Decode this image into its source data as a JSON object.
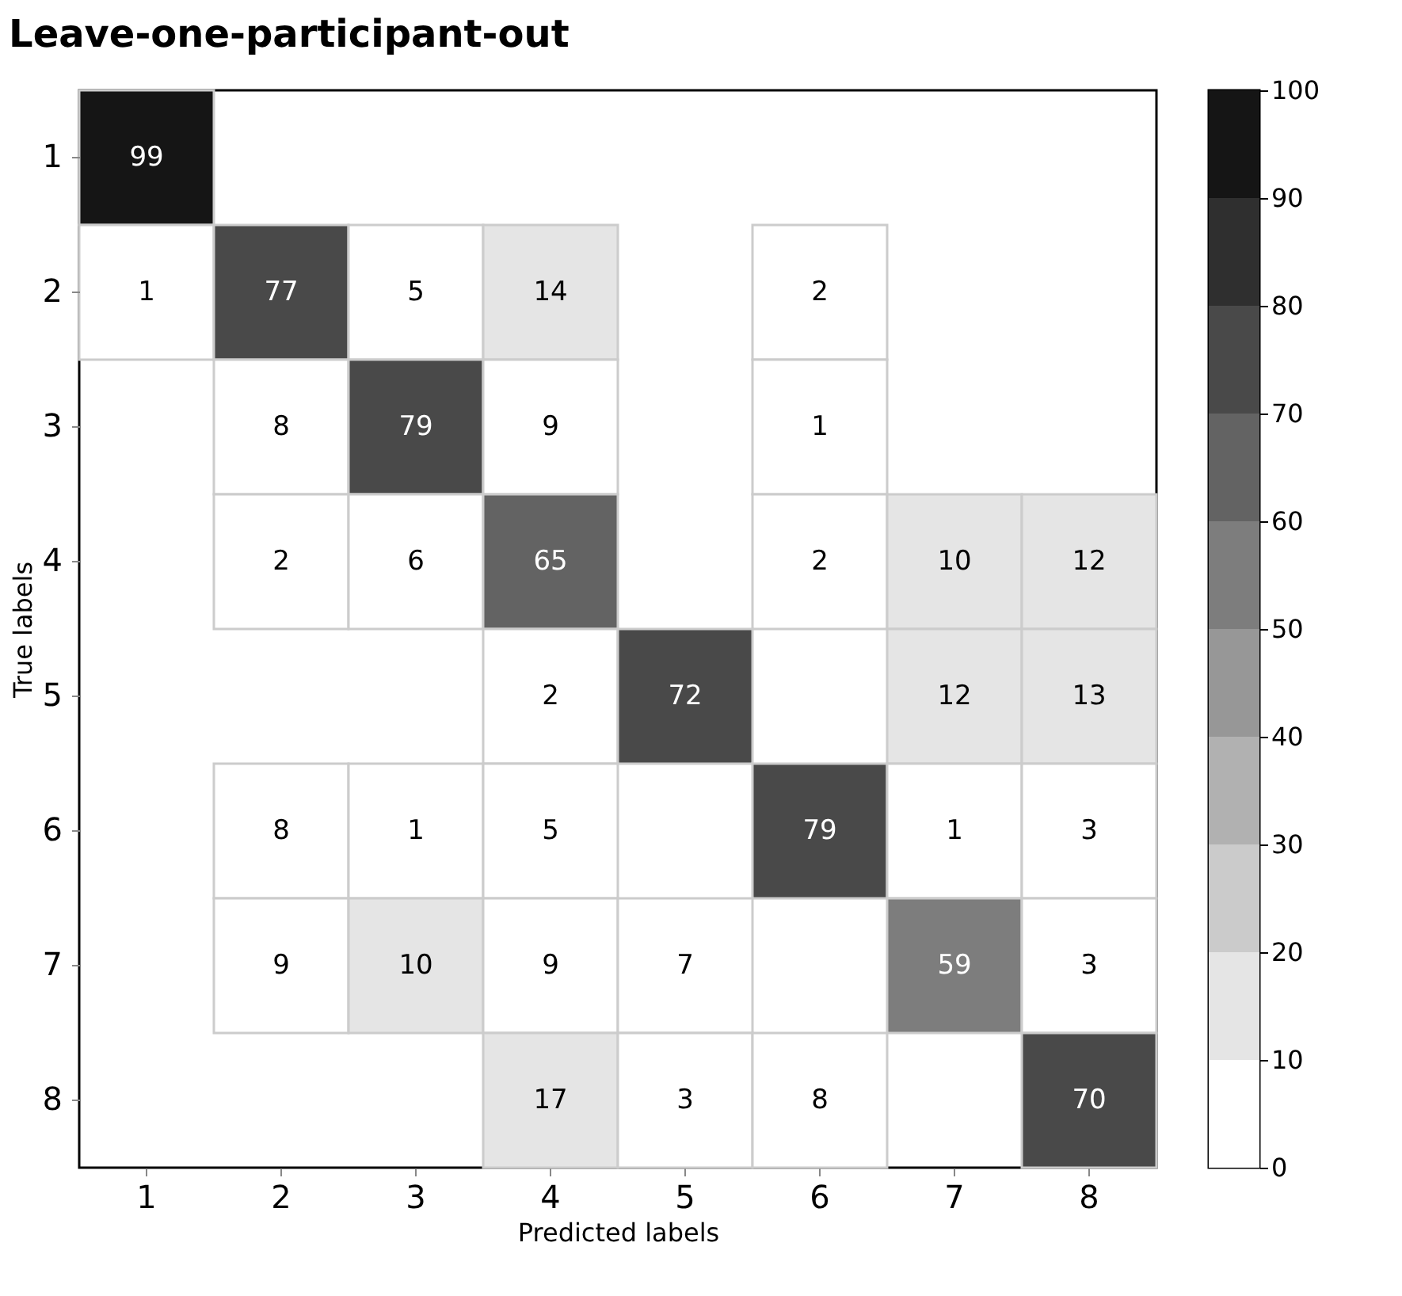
{
  "chart_data": {
    "type": "heatmap",
    "title": "Leave-one-participant-out",
    "xlabel": "Predicted labels",
    "ylabel": "True labels",
    "categories": [
      "1",
      "2",
      "3",
      "4",
      "5",
      "6",
      "7",
      "8"
    ],
    "y_categories": [
      "1",
      "2",
      "3",
      "4",
      "5",
      "6",
      "7",
      "8"
    ],
    "cells": [
      [
        99,
        null,
        null,
        null,
        null,
        null,
        null,
        null
      ],
      [
        1,
        77,
        5,
        14,
        null,
        2,
        null,
        null
      ],
      [
        null,
        8,
        79,
        9,
        null,
        1,
        null,
        null
      ],
      [
        null,
        2,
        6,
        65,
        null,
        2,
        10,
        12
      ],
      [
        null,
        null,
        null,
        2,
        72,
        null,
        12,
        13
      ],
      [
        null,
        8,
        1,
        5,
        null,
        79,
        1,
        3
      ],
      [
        null,
        9,
        10,
        9,
        7,
        null,
        59,
        3
      ],
      [
        null,
        null,
        null,
        17,
        3,
        8,
        null,
        70
      ]
    ],
    "data_labels": true,
    "clim": [
      0,
      100
    ],
    "cticks": [
      0,
      10,
      20,
      30,
      40,
      50,
      60,
      70,
      80,
      90,
      100
    ]
  }
}
